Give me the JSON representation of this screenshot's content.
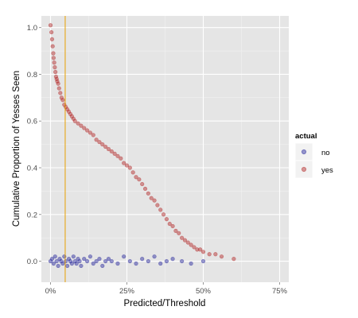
{
  "chart_data": {
    "type": "scatter",
    "title": "",
    "xlabel": "Predicted/Threshold",
    "ylabel": "Cumulative Proportion of Yesses Seen",
    "xlim": [
      -0.03,
      0.78
    ],
    "ylim": [
      -0.09,
      1.05
    ],
    "x_ticks": [
      0,
      0.25,
      0.5,
      0.75
    ],
    "x_tick_labels": [
      "0%",
      "25%",
      "50%",
      "75%"
    ],
    "y_ticks": [
      0,
      0.2,
      0.4,
      0.6,
      0.8,
      1.0
    ],
    "y_tick_labels": [
      "0.0",
      "0.2",
      "0.4",
      "0.6",
      "0.8",
      "1.0"
    ],
    "grid": true,
    "vline": {
      "x": 0.048,
      "color": "#e69f00"
    },
    "legend": {
      "title": "actual",
      "position": "right",
      "entries": [
        {
          "label": "no",
          "color": "#1f1f9a"
        },
        {
          "label": "yes",
          "color": "#b22222"
        }
      ]
    },
    "series": [
      {
        "name": "yes",
        "color": "#b22222",
        "x": [
          0.0,
          0.003,
          0.005,
          0.007,
          0.009,
          0.01,
          0.012,
          0.014,
          0.016,
          0.018,
          0.02,
          0.022,
          0.025,
          0.028,
          0.032,
          0.036,
          0.04,
          0.045,
          0.05,
          0.055,
          0.06,
          0.065,
          0.07,
          0.075,
          0.08,
          0.09,
          0.1,
          0.11,
          0.12,
          0.13,
          0.14,
          0.15,
          0.16,
          0.17,
          0.18,
          0.19,
          0.2,
          0.21,
          0.22,
          0.23,
          0.24,
          0.25,
          0.26,
          0.27,
          0.28,
          0.29,
          0.3,
          0.31,
          0.32,
          0.33,
          0.34,
          0.35,
          0.36,
          0.37,
          0.38,
          0.39,
          0.4,
          0.41,
          0.42,
          0.43,
          0.44,
          0.45,
          0.46,
          0.47,
          0.48,
          0.49,
          0.5,
          0.52,
          0.54,
          0.56,
          0.6
        ],
        "y": [
          1.01,
          0.98,
          0.95,
          0.92,
          0.89,
          0.87,
          0.85,
          0.83,
          0.81,
          0.79,
          0.78,
          0.77,
          0.76,
          0.74,
          0.72,
          0.7,
          0.69,
          0.67,
          0.66,
          0.65,
          0.64,
          0.63,
          0.62,
          0.61,
          0.6,
          0.59,
          0.58,
          0.57,
          0.56,
          0.55,
          0.54,
          0.52,
          0.51,
          0.5,
          0.49,
          0.48,
          0.47,
          0.46,
          0.45,
          0.44,
          0.42,
          0.41,
          0.4,
          0.38,
          0.36,
          0.35,
          0.33,
          0.31,
          0.29,
          0.27,
          0.26,
          0.24,
          0.22,
          0.2,
          0.18,
          0.16,
          0.15,
          0.13,
          0.12,
          0.1,
          0.09,
          0.08,
          0.07,
          0.06,
          0.05,
          0.05,
          0.04,
          0.03,
          0.03,
          0.02,
          0.01
        ]
      },
      {
        "name": "no",
        "color": "#1f1f9a",
        "x": [
          0.0,
          0.005,
          0.01,
          0.015,
          0.02,
          0.025,
          0.03,
          0.035,
          0.04,
          0.045,
          0.05,
          0.055,
          0.06,
          0.065,
          0.07,
          0.075,
          0.08,
          0.085,
          0.09,
          0.095,
          0.1,
          0.11,
          0.12,
          0.13,
          0.14,
          0.15,
          0.16,
          0.17,
          0.18,
          0.19,
          0.2,
          0.22,
          0.24,
          0.26,
          0.28,
          0.3,
          0.32,
          0.34,
          0.36,
          0.38,
          0.4,
          0.43,
          0.46,
          0.5
        ],
        "y": [
          0.0,
          0.01,
          -0.01,
          0.02,
          0.0,
          -0.02,
          0.01,
          0.0,
          -0.01,
          0.02,
          0.0,
          -0.02,
          0.01,
          0.0,
          -0.01,
          0.02,
          0.0,
          -0.01,
          0.01,
          0.0,
          -0.02,
          0.01,
          0.0,
          0.02,
          -0.01,
          0.0,
          0.01,
          -0.02,
          0.0,
          0.01,
          0.0,
          -0.01,
          0.02,
          0.0,
          -0.01,
          0.01,
          0.0,
          0.02,
          -0.01,
          0.0,
          0.01,
          0.0,
          -0.01,
          0.0
        ]
      }
    ]
  }
}
